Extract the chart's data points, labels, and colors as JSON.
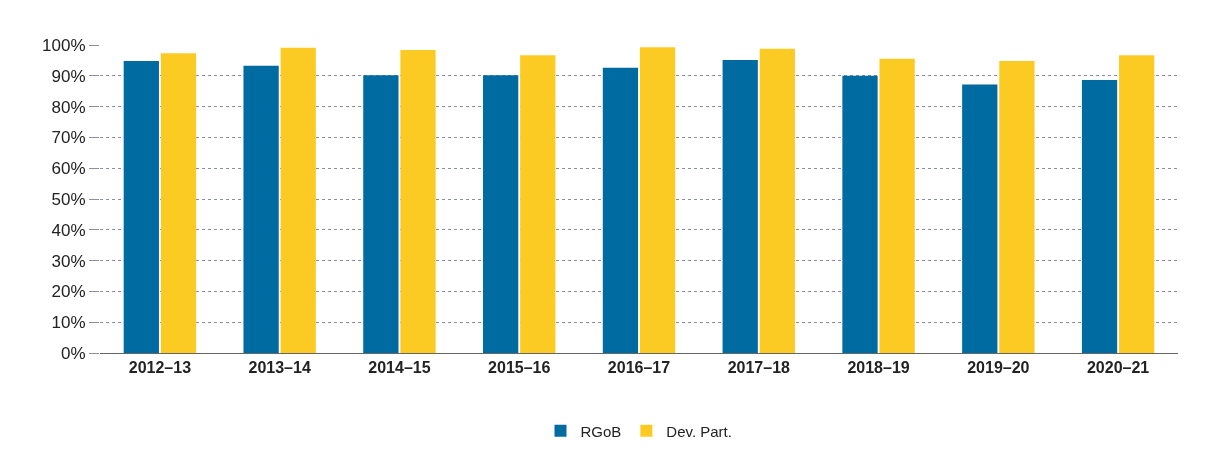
{
  "chart_data": {
    "type": "bar",
    "categories": [
      "2012–13",
      "2013–14",
      "2014–15",
      "2015–16",
      "2016–17",
      "2017–18",
      "2018–19",
      "2019–20",
      "2020–21"
    ],
    "series": [
      {
        "name": "RGoB",
        "color": "#006ba1",
        "values": [
          94.8,
          93.3,
          90.2,
          90.2,
          92.6,
          95.1,
          90.0,
          87.2,
          88.6
        ]
      },
      {
        "name": "Dev. Part.",
        "color": "#fccb23",
        "values": [
          97.3,
          99.1,
          98.4,
          96.7,
          99.3,
          98.8,
          95.5,
          94.8,
          96.7
        ]
      }
    ],
    "ylim": [
      0,
      100
    ],
    "yticks": [
      {
        "value": 0,
        "label": "0%"
      },
      {
        "value": 10,
        "label": "10%"
      },
      {
        "value": 20,
        "label": "20%"
      },
      {
        "value": 30,
        "label": "30%"
      },
      {
        "value": 40,
        "label": "40%"
      },
      {
        "value": 50,
        "label": "50%"
      },
      {
        "value": 60,
        "label": "60%"
      },
      {
        "value": 70,
        "label": "70%"
      },
      {
        "value": 80,
        "label": "80%"
      },
      {
        "value": 90,
        "label": "90%"
      },
      {
        "value": 100,
        "label": "100%"
      }
    ],
    "grid": "y",
    "legend": "bottom"
  }
}
